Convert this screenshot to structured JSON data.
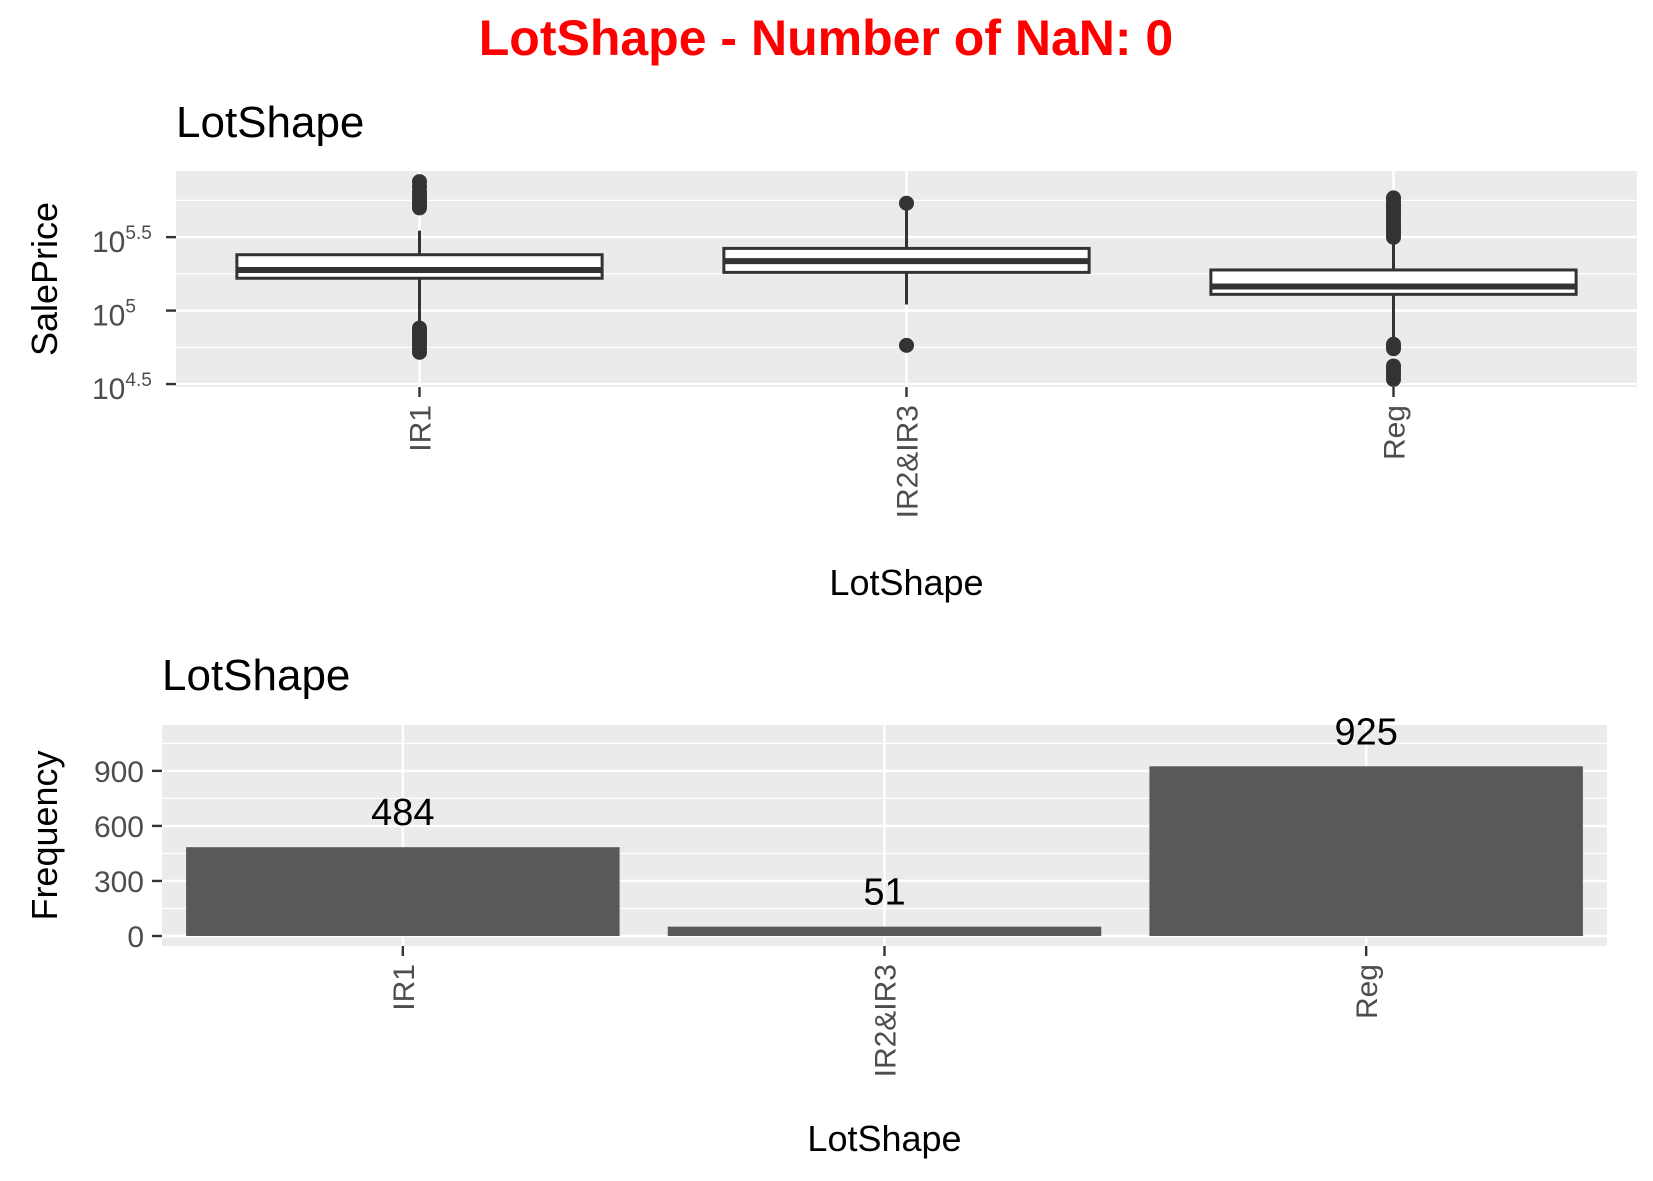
{
  "main_title": "LotShape - Number of NaN: 0",
  "colors": {
    "title": "#ff0000",
    "panel_bg": "#ebebeb",
    "grid": "#ffffff",
    "bar_fill": "#595959",
    "box_line": "#333333",
    "box_fill": "#ffffff",
    "text": "#000000",
    "tick_text": "#4d4d4d"
  },
  "chart_data": [
    {
      "type": "box",
      "title": "LotShape",
      "xlabel": "LotShape",
      "ylabel": "SalePrice",
      "yscale": "log10",
      "categories": [
        "IR1",
        "IR2&IR3",
        "Reg"
      ],
      "yticks": [
        {
          "exp": "4.5",
          "value": 31623
        },
        {
          "exp": "5",
          "value": 100000
        },
        {
          "exp": "5.5",
          "value": 316228
        }
      ],
      "ylim_log10": [
        4.48,
        5.95
      ],
      "boxes": [
        {
          "category": "IR1",
          "q1": 166000,
          "median": 189000,
          "q3": 240000,
          "whisker_low": 81000,
          "whisker_high": 350000,
          "outliers": [
            52000,
            55000,
            58000,
            61000,
            64000,
            67000,
            70000,
            73000,
            76000,
            500000,
            525000,
            545000,
            565000,
            590000,
            615000,
            650000,
            700000,
            755000
          ]
        },
        {
          "category": "IR2&IR3",
          "q1": 182000,
          "median": 217000,
          "q3": 265000,
          "whisker_low": 110000,
          "whisker_high": 500000,
          "outliers": [
            58000,
            538000
          ]
        },
        {
          "category": "Reg",
          "q1": 129000,
          "median": 146000,
          "q3": 189000,
          "whisker_low": 64000,
          "whisker_high": 300000,
          "outliers": [
            34000,
            36000,
            38000,
            40000,
            42000,
            55000,
            57000,
            59000,
            315000,
            330000,
            345000,
            360000,
            375000,
            390000,
            410000,
            430000,
            450000,
            470000,
            490000,
            510000,
            530000,
            560000,
            585000
          ]
        }
      ]
    },
    {
      "type": "bar",
      "title": "LotShape",
      "xlabel": "LotShape",
      "ylabel": "Frequency",
      "categories": [
        "IR1",
        "IR2&IR3",
        "Reg"
      ],
      "values": [
        484,
        51,
        925
      ],
      "value_labels": [
        "484",
        "51",
        "925"
      ],
      "yticks": [
        "0",
        "300",
        "600",
        "900"
      ],
      "ylim": [
        0,
        1150
      ]
    }
  ]
}
